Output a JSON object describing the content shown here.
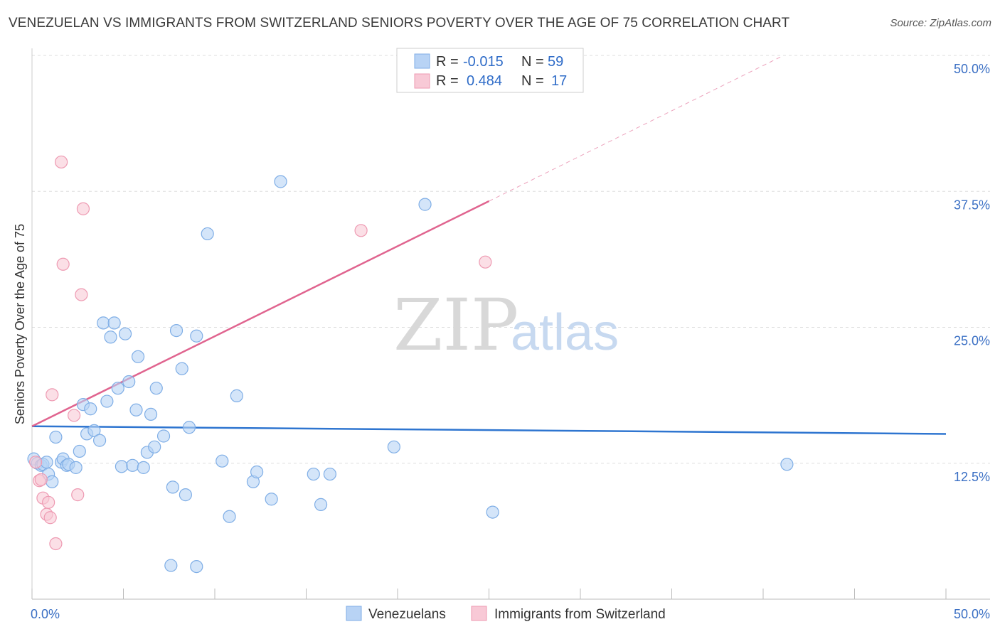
{
  "title": "VENEZUELAN VS IMMIGRANTS FROM SWITZERLAND SENIORS POVERTY OVER THE AGE OF 75 CORRELATION CHART",
  "source": "Source: ZipAtlas.com",
  "watermark": {
    "zip": "ZIP",
    "atlas": "atlas"
  },
  "colors": {
    "venezuelan_fill": "#b8d3f5",
    "venezuelan_stroke": "#7faee6",
    "venezuelan_line": "#2e75d0",
    "swiss_fill": "#f8c9d6",
    "swiss_stroke": "#ee9ab2",
    "swiss_line": "#e0648f",
    "tick_label": "#3a6fc4",
    "grid": "#dddddd"
  },
  "legend": {
    "rows": [
      {
        "r_label": "R =",
        "r_value": "-0.015",
        "n_label": "N =",
        "n_value": "59"
      },
      {
        "r_label": "R =",
        "r_value": "0.484",
        "n_label": "N =",
        "n_value": "17"
      }
    ]
  },
  "chart_data": {
    "type": "scatter",
    "title": "VENEZUELAN VS IMMIGRANTS FROM SWITZERLAND SENIORS POVERTY OVER THE AGE OF 75 CORRELATION CHART",
    "xlabel": "",
    "ylabel": "Seniors Poverty Over the Age of 75",
    "xlim": [
      0,
      50
    ],
    "ylim": [
      0,
      50
    ],
    "x_tick_labels": [
      "0.0%",
      "50.0%"
    ],
    "y_ticks": [
      12.5,
      25.0,
      37.5,
      50.0
    ],
    "y_tick_labels": [
      "12.5%",
      "25.0%",
      "37.5%",
      "50.0%"
    ],
    "grid": true,
    "legend_position": "top-center",
    "series": [
      {
        "name": "Venezuelans",
        "r": -0.015,
        "n": 59,
        "trend": {
          "x": [
            0,
            50
          ],
          "y": [
            15.9,
            15.2
          ]
        },
        "points": [
          [
            0.1,
            12.9
          ],
          [
            0.3,
            12.5
          ],
          [
            0.5,
            12.3
          ],
          [
            0.6,
            12.4
          ],
          [
            0.8,
            12.6
          ],
          [
            0.9,
            11.5
          ],
          [
            1.1,
            10.8
          ],
          [
            1.3,
            14.9
          ],
          [
            1.6,
            12.6
          ],
          [
            1.7,
            12.9
          ],
          [
            1.9,
            12.3
          ],
          [
            2.0,
            12.4
          ],
          [
            2.4,
            12.1
          ],
          [
            2.6,
            13.6
          ],
          [
            2.8,
            17.9
          ],
          [
            3.0,
            15.2
          ],
          [
            3.2,
            17.5
          ],
          [
            3.4,
            15.5
          ],
          [
            3.7,
            14.6
          ],
          [
            3.9,
            25.4
          ],
          [
            4.1,
            18.2
          ],
          [
            4.3,
            24.1
          ],
          [
            4.5,
            25.4
          ],
          [
            4.7,
            19.4
          ],
          [
            4.9,
            12.2
          ],
          [
            5.1,
            24.4
          ],
          [
            5.3,
            20.0
          ],
          [
            5.5,
            12.3
          ],
          [
            5.7,
            17.4
          ],
          [
            5.8,
            22.3
          ],
          [
            6.1,
            12.1
          ],
          [
            6.3,
            13.5
          ],
          [
            6.5,
            17.0
          ],
          [
            6.7,
            14.0
          ],
          [
            6.8,
            19.4
          ],
          [
            7.2,
            15.0
          ],
          [
            7.6,
            3.1
          ],
          [
            7.7,
            10.3
          ],
          [
            7.9,
            24.7
          ],
          [
            8.2,
            21.2
          ],
          [
            8.4,
            9.6
          ],
          [
            8.6,
            15.8
          ],
          [
            9.0,
            24.2
          ],
          [
            9.0,
            3.0
          ],
          [
            9.6,
            33.6
          ],
          [
            10.4,
            12.7
          ],
          [
            10.8,
            7.6
          ],
          [
            11.2,
            18.7
          ],
          [
            12.1,
            10.8
          ],
          [
            12.3,
            11.7
          ],
          [
            13.1,
            9.2
          ],
          [
            13.6,
            38.4
          ],
          [
            15.4,
            11.5
          ],
          [
            15.8,
            8.7
          ],
          [
            16.3,
            11.5
          ],
          [
            19.8,
            14.0
          ],
          [
            21.5,
            36.3
          ],
          [
            25.2,
            8.0
          ],
          [
            41.3,
            12.4
          ]
        ]
      },
      {
        "name": "Immigrants from Switzerland",
        "r": 0.484,
        "n": 17,
        "trend": {
          "x": [
            0,
            25
          ],
          "y": [
            15.9,
            36.6
          ],
          "dashed_extension": {
            "x": [
              25,
              41
            ],
            "y": [
              36.6,
              49.9
            ]
          }
        },
        "points": [
          [
            0.2,
            12.6
          ],
          [
            0.4,
            10.9
          ],
          [
            0.5,
            11.0
          ],
          [
            0.6,
            9.3
          ],
          [
            0.8,
            7.8
          ],
          [
            0.9,
            8.9
          ],
          [
            1.0,
            7.5
          ],
          [
            1.1,
            18.8
          ],
          [
            1.3,
            5.1
          ],
          [
            1.6,
            40.2
          ],
          [
            1.7,
            30.8
          ],
          [
            2.3,
            16.9
          ],
          [
            2.5,
            9.6
          ],
          [
            2.7,
            28.0
          ],
          [
            2.8,
            35.9
          ],
          [
            18.0,
            33.9
          ],
          [
            24.8,
            31.0
          ]
        ]
      }
    ]
  }
}
